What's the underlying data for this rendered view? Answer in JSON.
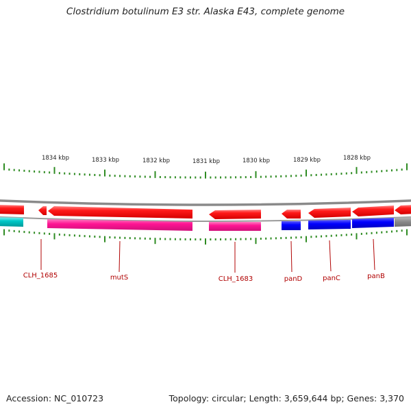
{
  "title": "Clostridium botulinum E3 str. Alaska E43, complete genome",
  "footer": {
    "accession": "Accession: NC_010723",
    "summary": "Topology: circular; Length: 3,659,644 bp; Genes: 3,370"
  },
  "colors": {
    "forward_cds": "#ee0000",
    "forward_cds_light": "#ff7070",
    "reverse_cds_magenta": "#ff1493",
    "reverse_cds_blue": "#0000ee",
    "reverse_cds_cyan": "#00c0c0",
    "backbone": "#8a8a8a",
    "ticks": "#2e8b22",
    "labels": "#b00000"
  },
  "ticks": [
    {
      "label": "1834 kbp",
      "kbp": 1834
    },
    {
      "label": "1833 kbp",
      "kbp": 1833
    },
    {
      "label": "1832 kbp",
      "kbp": 1832
    },
    {
      "label": "1831 kbp",
      "kbp": 1831
    },
    {
      "label": "1830 kbp",
      "kbp": 1830
    },
    {
      "label": "1829 kbp",
      "kbp": 1829
    },
    {
      "label": "1828 kbp",
      "kbp": 1828
    }
  ],
  "genes": [
    {
      "name": "CLH_1685"
    },
    {
      "name": "mutS"
    },
    {
      "name": "CLH_1683"
    },
    {
      "name": "panD"
    },
    {
      "name": "panC"
    },
    {
      "name": "panB"
    }
  ]
}
